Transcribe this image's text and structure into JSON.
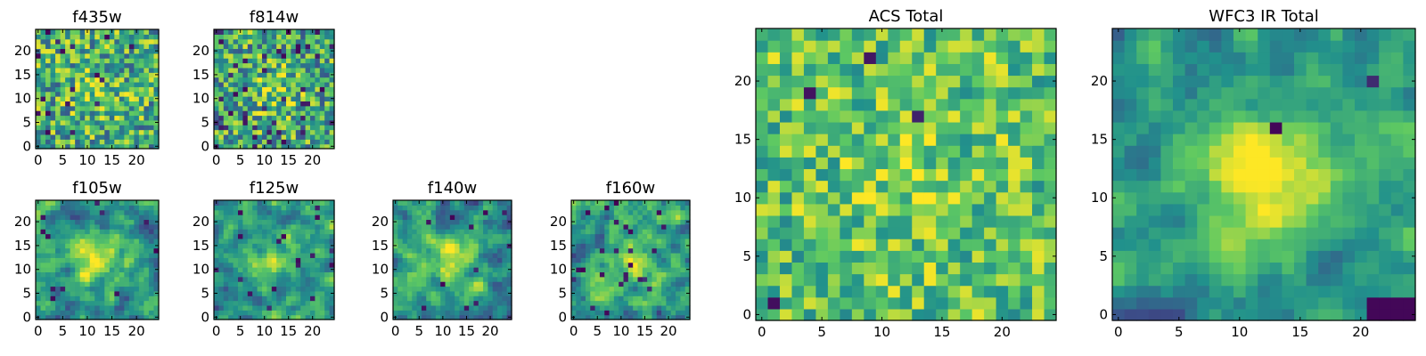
{
  "chart_data": [
    {
      "type": "heatmap",
      "title": "f435w",
      "grid_size": 25,
      "colormap": "viridis",
      "seed": 11,
      "gaussian_sigma": 0,
      "center_peak": 0.15,
      "noise": 1.0,
      "baseline": 0.62,
      "dark_pixel_rate": 0.04,
      "xticks": [
        "0",
        "5",
        "10",
        "15",
        "20"
      ],
      "yticks": [
        "0",
        "5",
        "10",
        "15",
        "20"
      ],
      "xlim": [
        0,
        25
      ],
      "ylim": [
        0,
        25
      ]
    },
    {
      "type": "heatmap",
      "title": "f814w",
      "grid_size": 25,
      "colormap": "viridis",
      "seed": 23,
      "gaussian_sigma": 0,
      "center_peak": 0.2,
      "noise": 1.0,
      "baseline": 0.6,
      "dark_pixel_rate": 0.06,
      "xticks": [
        "0",
        "5",
        "10",
        "15",
        "20"
      ],
      "yticks": [
        "0",
        "5",
        "10",
        "15",
        "20"
      ],
      "xlim": [
        0,
        25
      ],
      "ylim": [
        0,
        25
      ]
    },
    {
      "type": "heatmap",
      "title": "f105w",
      "grid_size": 25,
      "colormap": "viridis",
      "seed": 37,
      "gaussian_sigma": 1,
      "center_peak": 0.45,
      "noise": 0.9,
      "baseline": 0.52,
      "dark_pixel_rate": 0.02,
      "xticks": [
        "0",
        "5",
        "10",
        "15",
        "20"
      ],
      "yticks": [
        "0",
        "5",
        "10",
        "15",
        "20"
      ],
      "xlim": [
        0,
        25
      ],
      "ylim": [
        0,
        25
      ]
    },
    {
      "type": "heatmap",
      "title": "f125w",
      "grid_size": 25,
      "colormap": "viridis",
      "seed": 41,
      "gaussian_sigma": 1,
      "center_peak": 0.3,
      "noise": 1.0,
      "baseline": 0.55,
      "dark_pixel_rate": 0.02,
      "xticks": [
        "0",
        "5",
        "10",
        "15",
        "20"
      ],
      "yticks": [
        "0",
        "5",
        "10",
        "15",
        "20"
      ],
      "xlim": [
        0,
        25
      ],
      "ylim": [
        0,
        25
      ]
    },
    {
      "type": "heatmap",
      "title": "f140w",
      "grid_size": 25,
      "colormap": "viridis",
      "seed": 53,
      "gaussian_sigma": 1,
      "center_peak": 0.35,
      "noise": 1.0,
      "baseline": 0.52,
      "dark_pixel_rate": 0.02,
      "xticks": [
        "0",
        "5",
        "10",
        "15",
        "20"
      ],
      "yticks": [
        "0",
        "5",
        "10",
        "15",
        "20"
      ],
      "xlim": [
        0,
        25
      ],
      "ylim": [
        0,
        25
      ]
    },
    {
      "type": "heatmap",
      "title": "f160w",
      "grid_size": 25,
      "colormap": "viridis",
      "seed": 67,
      "gaussian_sigma": 1,
      "center_peak": 0.25,
      "noise": 1.0,
      "baseline": 0.55,
      "dark_pixel_rate": 0.03,
      "xticks": [
        "0",
        "5",
        "10",
        "15",
        "20"
      ],
      "yticks": [
        "0",
        "5",
        "10",
        "15",
        "20"
      ],
      "xlim": [
        0,
        25
      ],
      "ylim": [
        0,
        25
      ]
    },
    {
      "type": "heatmap",
      "title": "ACS Total",
      "grid_size": 25,
      "colormap": "viridis",
      "seed": 79,
      "gaussian_sigma": 0,
      "center_peak": 0.1,
      "noise": 0.75,
      "baseline": 0.72,
      "dark_pixel_rate": 0.015,
      "xticks": [
        "0",
        "5",
        "10",
        "15",
        "20"
      ],
      "yticks": [
        "0",
        "5",
        "10",
        "15",
        "20"
      ],
      "xlim": [
        0,
        25
      ],
      "ylim": [
        0,
        25
      ]
    },
    {
      "type": "heatmap",
      "title": "WFC3 IR Total",
      "grid_size": 25,
      "colormap": "viridis",
      "seed": 97,
      "gaussian_sigma": 1,
      "center_peak": 0.5,
      "noise": 0.8,
      "baseline": 0.5,
      "dark_pixel_rate": 0.005,
      "dark_corner": "bottom-right",
      "xticks": [
        "0",
        "5",
        "10",
        "15",
        "20"
      ],
      "yticks": [
        "0",
        "5",
        "10",
        "15",
        "20"
      ],
      "xlim": [
        0,
        25
      ],
      "ylim": [
        0,
        25
      ]
    }
  ]
}
